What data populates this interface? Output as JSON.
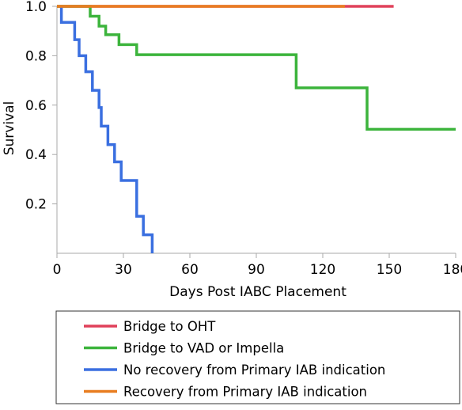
{
  "chart_data": {
    "type": "line",
    "step": true,
    "xlabel": "Days Post IABC Placement",
    "ylabel": "Survival",
    "xlim": [
      0,
      180
    ],
    "ylim": [
      0,
      1.0
    ],
    "x_ticks": [
      0,
      30,
      60,
      90,
      120,
      150,
      180
    ],
    "y_ticks": [
      0.2,
      0.4,
      0.6,
      0.8,
      1.0
    ],
    "x_tick_labels": [
      "0",
      "30",
      "60",
      "90",
      "120",
      "150",
      "180"
    ],
    "y_tick_labels": [
      "0.2",
      "0.4",
      "0.6",
      "0.8",
      "1.0"
    ],
    "grid": false,
    "legend_position": "bottom",
    "series": [
      {
        "name": "Bridge to OHT",
        "color": "#e0415a",
        "points": [
          [
            0,
            1.0
          ],
          [
            152,
            1.0
          ]
        ]
      },
      {
        "name": "Bridge to VAD or Impella",
        "color": "#3cb43c",
        "points": [
          [
            0,
            1.0
          ],
          [
            15,
            1.0
          ],
          [
            15,
            0.96
          ],
          [
            19,
            0.96
          ],
          [
            19,
            0.92
          ],
          [
            22,
            0.92
          ],
          [
            22,
            0.885
          ],
          [
            28,
            0.885
          ],
          [
            28,
            0.845
          ],
          [
            36,
            0.845
          ],
          [
            36,
            0.804
          ],
          [
            108,
            0.804
          ],
          [
            108,
            0.67
          ],
          [
            140,
            0.67
          ],
          [
            140,
            0.502
          ],
          [
            180,
            0.502
          ]
        ]
      },
      {
        "name": "No recovery from Primary IAB indication",
        "color": "#3a6fe0",
        "points": [
          [
            2,
            1.0
          ],
          [
            2,
            0.935
          ],
          [
            8,
            0.935
          ],
          [
            8,
            0.865
          ],
          [
            10,
            0.865
          ],
          [
            10,
            0.8
          ],
          [
            13,
            0.8
          ],
          [
            13,
            0.735
          ],
          [
            16,
            0.735
          ],
          [
            16,
            0.66
          ],
          [
            19,
            0.66
          ],
          [
            19,
            0.59
          ],
          [
            20,
            0.59
          ],
          [
            20,
            0.515
          ],
          [
            23,
            0.515
          ],
          [
            23,
            0.44
          ],
          [
            26,
            0.44
          ],
          [
            26,
            0.37
          ],
          [
            29,
            0.37
          ],
          [
            29,
            0.295
          ],
          [
            36,
            0.295
          ],
          [
            36,
            0.15
          ],
          [
            39,
            0.15
          ],
          [
            39,
            0.075
          ],
          [
            43,
            0.075
          ],
          [
            43,
            0.0
          ]
        ]
      },
      {
        "name": "Recovery from Primary IAB indication",
        "color": "#e87d20",
        "points": [
          [
            0,
            1.0
          ],
          [
            130,
            1.0
          ]
        ]
      }
    ]
  }
}
